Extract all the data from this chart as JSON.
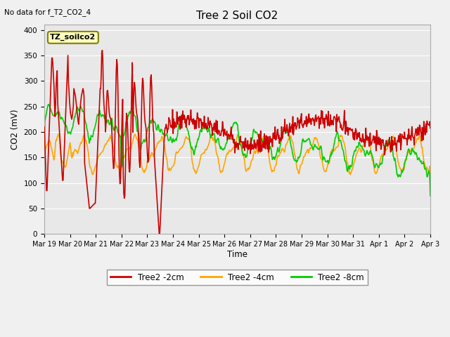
{
  "title": "Tree 2 Soil CO2",
  "subtitle": "No data for f_T2_CO2_4",
  "ylabel": "CO2 (mV)",
  "xlabel": "Time",
  "annotation": "TZ_soilco2",
  "ylim": [
    0,
    410
  ],
  "yticks": [
    0,
    50,
    100,
    150,
    200,
    250,
    300,
    350,
    400
  ],
  "xtick_labels": [
    "Mar 19",
    "Mar 20",
    "Mar 21",
    "Mar 22",
    "Mar 23",
    "Mar 24",
    "Mar 25",
    "Mar 26",
    "Mar 27",
    "Mar 28",
    "Mar 29",
    "Mar 30",
    "Mar 31",
    "Apr 1",
    "Apr 2",
    "Apr 3"
  ],
  "bg_color": "#e8e8e8",
  "grid_color": "#ffffff",
  "line_2cm_color": "#cc0000",
  "line_4cm_color": "#ffa500",
  "line_8cm_color": "#00cc00",
  "line_width": 1.2,
  "legend_labels": [
    "Tree2 -2cm",
    "Tree2 -4cm",
    "Tree2 -8cm"
  ],
  "fig_width": 6.4,
  "fig_height": 4.8,
  "dpi": 100
}
